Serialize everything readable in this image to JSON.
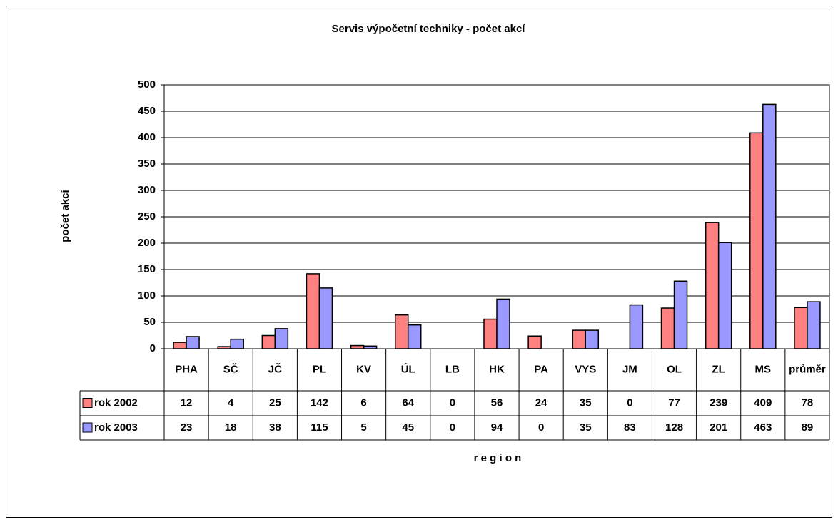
{
  "chart_data": {
    "type": "bar",
    "title": "Servis výpočetní techniky - počet akcí",
    "y_label": "počet akcí",
    "x_label": "r e g i o n",
    "categories": [
      "PHA",
      "SČ",
      "JČ",
      "PL",
      "KV",
      "ÚL",
      "LB",
      "HK",
      "PA",
      "VYS",
      "JM",
      "OL",
      "ZL",
      "MS",
      "průměr"
    ],
    "series": [
      {
        "name": "rok 2002",
        "color": "#ff8080",
        "values": [
          12,
          4,
          25,
          142,
          6,
          64,
          0,
          56,
          24,
          35,
          0,
          77,
          239,
          409,
          78
        ]
      },
      {
        "name": "rok 2003",
        "color": "#9999ff",
        "values": [
          23,
          18,
          38,
          115,
          5,
          45,
          0,
          94,
          0,
          35,
          83,
          128,
          201,
          463,
          89
        ]
      }
    ],
    "ylim": [
      0,
      500
    ],
    "yticks": [
      0,
      50,
      100,
      150,
      200,
      250,
      300,
      350,
      400,
      450,
      500
    ],
    "grid": true,
    "data_table": true
  }
}
